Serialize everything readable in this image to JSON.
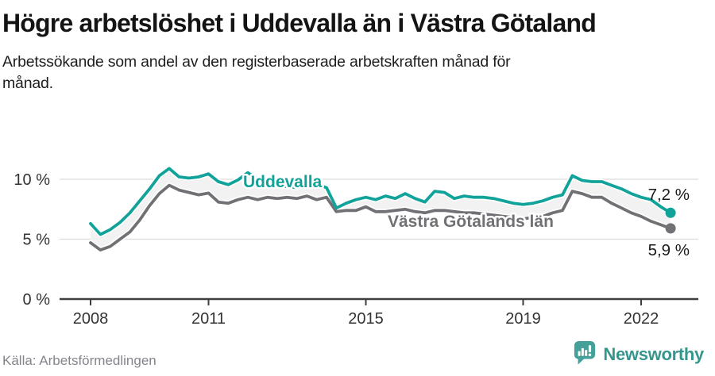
{
  "header": {
    "title": "Högre arbetslöshet i Uddevalla än i Västra Götaland",
    "subtitle": "Arbetssökande som andel av den registerbaserade arbetskraften månad för månad."
  },
  "footer": {
    "source": "Källa: Arbetsförmedlingen",
    "brand_name": "Newsworthy",
    "brand_icon": "newsworthy-speech-bubble-bar-chart-icon",
    "brand_text_color": "#35968e",
    "brand_icon_color": "#45a09a"
  },
  "colors": {
    "background": "#ffffff",
    "title_text": "#141414",
    "axis_text": "#333333",
    "axis_line": "#3e3e3e",
    "gridline": "#dcdcdc",
    "band_fill": "#f2f2f2",
    "value_label_text": "#1a1a1a",
    "source_text": "#84848c"
  },
  "chart_data": {
    "type": "line",
    "title": "Högre arbetslöshet i Uddevalla än i Västra Götaland",
    "unit": "%",
    "xlabel": "",
    "ylabel": "",
    "ylim": [
      0,
      12.3
    ],
    "xlim": [
      2007.2,
      2023.3
    ],
    "grid": "horizontal-light",
    "legend": "inline-series-labels",
    "band_between_series": true,
    "x_years": [
      2008.0,
      2008.25,
      2008.5,
      2008.75,
      2009.0,
      2009.25,
      2009.5,
      2009.75,
      2010.0,
      2010.25,
      2010.5,
      2010.75,
      2011.0,
      2011.25,
      2011.5,
      2011.75,
      2012.0,
      2012.25,
      2012.5,
      2012.75,
      2013.0,
      2013.25,
      2013.5,
      2013.75,
      2014.0,
      2014.25,
      2014.5,
      2014.75,
      2015.0,
      2015.25,
      2015.5,
      2015.75,
      2016.0,
      2016.25,
      2016.5,
      2016.75,
      2017.0,
      2017.25,
      2017.5,
      2017.75,
      2018.0,
      2018.25,
      2018.5,
      2018.75,
      2019.0,
      2019.25,
      2019.5,
      2019.75,
      2020.0,
      2020.25,
      2020.5,
      2020.75,
      2021.0,
      2021.25,
      2021.5,
      2021.75,
      2022.0,
      2022.25,
      2022.5,
      2022.75
    ],
    "series": [
      {
        "name": "Uddevalla",
        "color": "#11a39a",
        "end_label": "7,2 %",
        "end_value": 7.2,
        "values": [
          6.3,
          5.4,
          5.8,
          6.4,
          7.2,
          8.2,
          9.2,
          10.3,
          10.9,
          10.2,
          10.1,
          10.2,
          10.45,
          9.8,
          9.55,
          9.95,
          10.55,
          10.0,
          9.7,
          9.5,
          9.4,
          9.3,
          9.9,
          9.6,
          9.3,
          7.6,
          8.0,
          8.3,
          8.5,
          8.3,
          8.6,
          8.4,
          8.8,
          8.4,
          8.1,
          9.0,
          8.9,
          8.4,
          8.6,
          8.5,
          8.5,
          8.4,
          8.2,
          8.0,
          7.9,
          8.0,
          8.2,
          8.5,
          8.7,
          10.3,
          9.9,
          9.8,
          9.8,
          9.5,
          9.2,
          8.8,
          8.5,
          8.3,
          7.7,
          7.2
        ]
      },
      {
        "name": "Västra Götalands län",
        "color": "#717175",
        "end_label": "5,9 %",
        "end_value": 5.9,
        "values": [
          4.7,
          4.1,
          4.4,
          5.0,
          5.6,
          6.6,
          7.8,
          8.8,
          9.5,
          9.1,
          8.9,
          8.7,
          8.85,
          8.1,
          8.0,
          8.3,
          8.5,
          8.3,
          8.5,
          8.4,
          8.5,
          8.4,
          8.6,
          8.3,
          8.5,
          7.3,
          7.4,
          7.4,
          7.7,
          7.3,
          7.3,
          7.4,
          7.5,
          7.3,
          7.2,
          7.4,
          7.4,
          7.3,
          7.2,
          7.2,
          7.1,
          7.0,
          6.9,
          6.8,
          6.7,
          6.8,
          6.9,
          7.2,
          7.4,
          9.0,
          8.8,
          8.5,
          8.5,
          8.0,
          7.6,
          7.2,
          6.9,
          6.5,
          6.2,
          5.9
        ]
      }
    ],
    "yticks": [
      {
        "value": 0,
        "label": "0 %"
      },
      {
        "value": 5,
        "label": "5 %"
      },
      {
        "value": 10,
        "label": "10 %"
      }
    ],
    "xticks": [
      {
        "value": 2008,
        "label": "2008"
      },
      {
        "value": 2011,
        "label": "2011"
      },
      {
        "value": 2015,
        "label": "2015"
      },
      {
        "value": 2019,
        "label": "2019"
      },
      {
        "value": 2022,
        "label": "2022"
      }
    ]
  }
}
